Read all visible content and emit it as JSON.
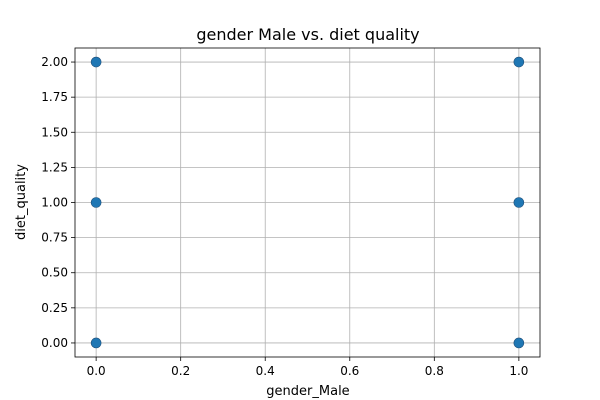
{
  "chart_data": {
    "type": "scatter",
    "title": "gender Male vs. diet quality",
    "xlabel": "gender_Male",
    "ylabel": "diet_quality",
    "xlim": [
      -0.05,
      1.05
    ],
    "ylim": [
      -0.1,
      2.1
    ],
    "xticks": [
      0.0,
      0.2,
      0.4,
      0.6,
      0.8,
      1.0
    ],
    "xtick_labels": [
      "0.0",
      "0.2",
      "0.4",
      "0.6",
      "0.8",
      "1.0"
    ],
    "yticks": [
      0.0,
      0.25,
      0.5,
      0.75,
      1.0,
      1.25,
      1.5,
      1.75,
      2.0
    ],
    "ytick_labels": [
      "0.00",
      "0.25",
      "0.50",
      "0.75",
      "1.00",
      "1.25",
      "1.50",
      "1.75",
      "2.00"
    ],
    "grid": true,
    "point_color": "#1f77b4",
    "points": [
      {
        "x": 0,
        "y": 0
      },
      {
        "x": 0,
        "y": 1
      },
      {
        "x": 0,
        "y": 2
      },
      {
        "x": 1,
        "y": 0
      },
      {
        "x": 1,
        "y": 1
      },
      {
        "x": 1,
        "y": 2
      }
    ]
  }
}
